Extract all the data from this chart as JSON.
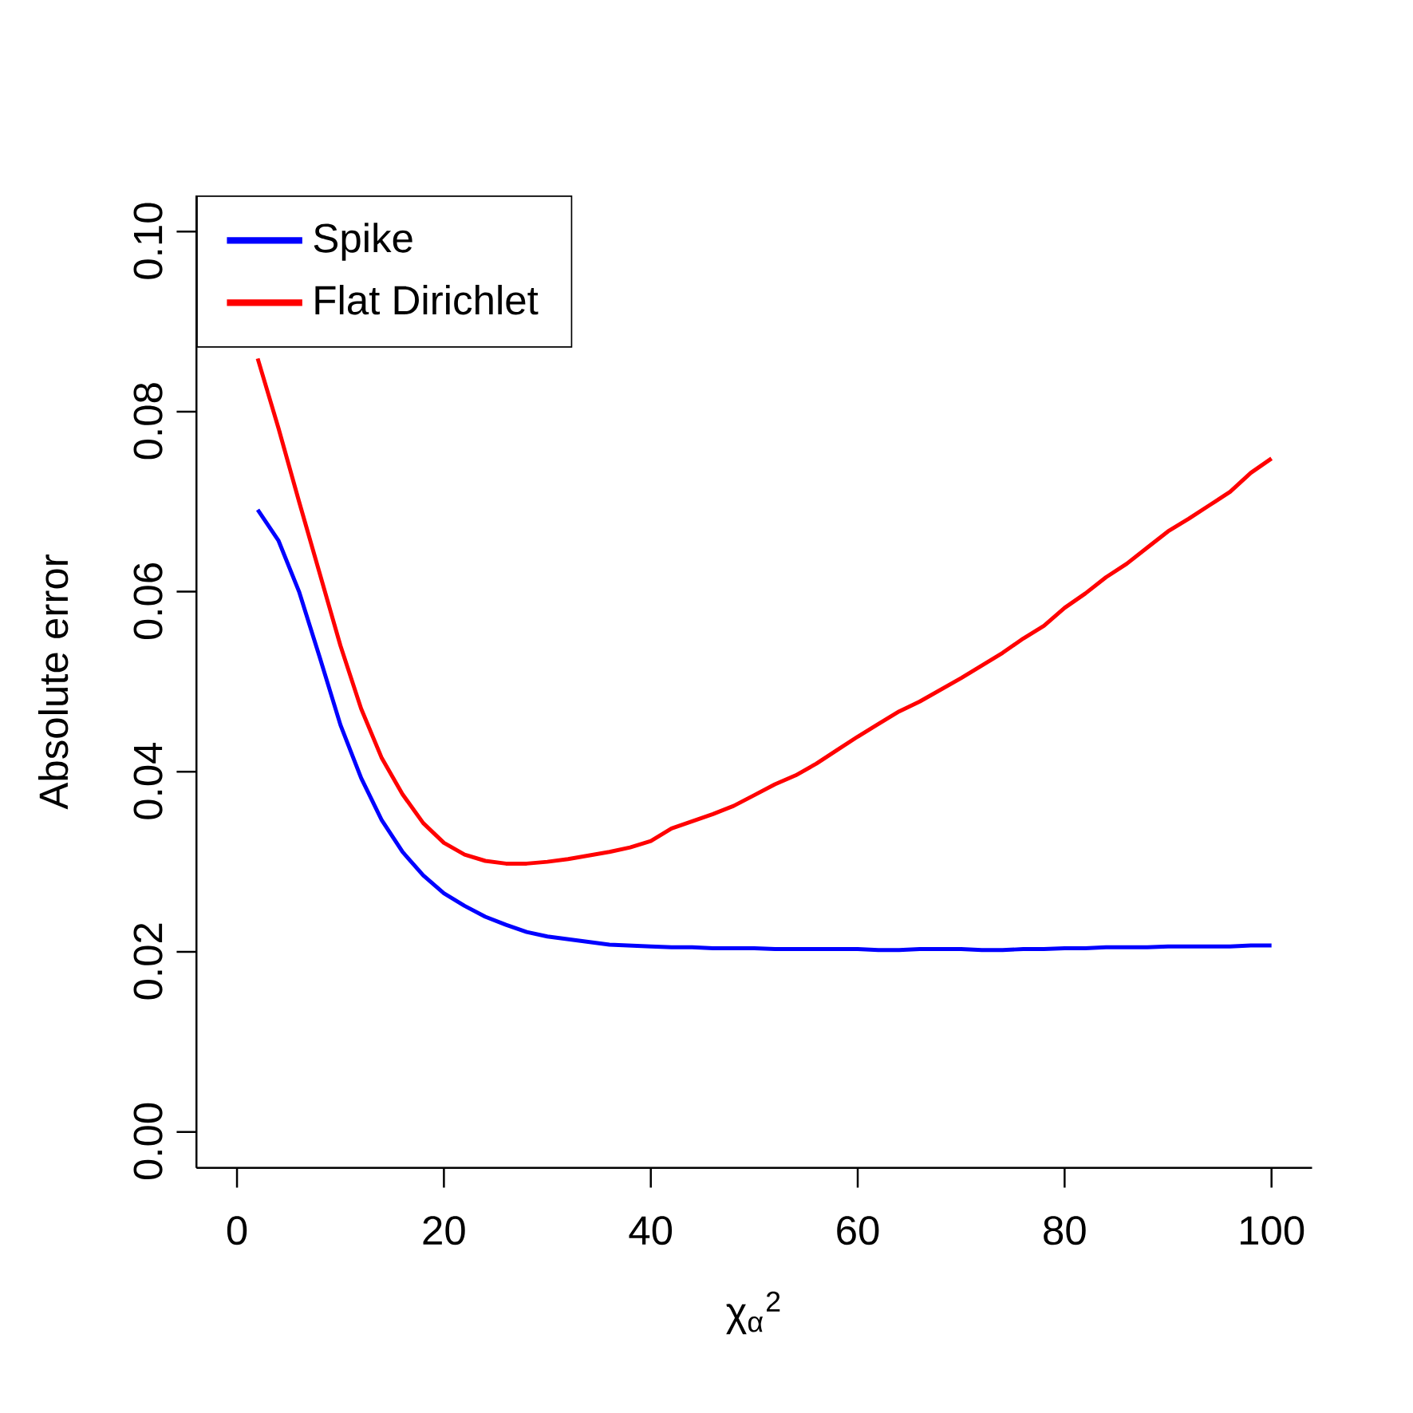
{
  "chart_data": {
    "type": "line",
    "xlabel": "χ$_{α}$$^{2}$",
    "ylabel": "Absolute error",
    "x": [
      2,
      4,
      6,
      8,
      10,
      12,
      14,
      16,
      18,
      20,
      22,
      24,
      26,
      28,
      30,
      32,
      34,
      36,
      38,
      40,
      42,
      44,
      46,
      48,
      50,
      52,
      54,
      56,
      58,
      60,
      62,
      64,
      66,
      68,
      70,
      72,
      74,
      76,
      78,
      80,
      82,
      84,
      86,
      88,
      90,
      92,
      94,
      96,
      98,
      100
    ],
    "series": [
      {
        "name": "Spike",
        "color": "#0000ff",
        "values": [
          0.0691,
          0.0657,
          0.06,
          0.0527,
          0.0452,
          0.0393,
          0.0346,
          0.0311,
          0.0285,
          0.0265,
          0.0251,
          0.0239,
          0.023,
          0.0222,
          0.0217,
          0.0214,
          0.0211,
          0.0208,
          0.0207,
          0.0206,
          0.0205,
          0.0205,
          0.0204,
          0.0204,
          0.0204,
          0.0203,
          0.0203,
          0.0203,
          0.0203,
          0.0203,
          0.0202,
          0.0202,
          0.0203,
          0.0203,
          0.0203,
          0.0202,
          0.0202,
          0.0203,
          0.0203,
          0.0204,
          0.0204,
          0.0205,
          0.0205,
          0.0205,
          0.0206,
          0.0206,
          0.0206,
          0.0206,
          0.0207,
          0.0207
        ]
      },
      {
        "name": "Flat Dirichlet",
        "color": "#ff0000",
        "values": [
          0.0859,
          0.0782,
          0.07,
          0.062,
          0.054,
          0.047,
          0.0415,
          0.0375,
          0.0343,
          0.0321,
          0.0308,
          0.0301,
          0.0298,
          0.0298,
          0.03,
          0.0303,
          0.0307,
          0.0311,
          0.0316,
          0.0323,
          0.0337,
          0.0345,
          0.0353,
          0.0362,
          0.0374,
          0.0386,
          0.0396,
          0.0409,
          0.0424,
          0.0439,
          0.0453,
          0.0467,
          0.0478,
          0.0491,
          0.0504,
          0.0518,
          0.0532,
          0.0548,
          0.0562,
          0.0582,
          0.0598,
          0.0616,
          0.0631,
          0.0649,
          0.0667,
          0.0681,
          0.0696,
          0.0711,
          0.0732,
          0.0748
        ]
      }
    ],
    "xlim": [
      -3.92,
      103.92
    ],
    "ylim": [
      -0.004,
      0.104
    ],
    "xticks": [
      0,
      20,
      40,
      60,
      80,
      100
    ],
    "yticks": [
      {
        "value": 0,
        "label": "0.00"
      },
      {
        "value": 0.02,
        "label": "0.02"
      },
      {
        "value": 0.04,
        "label": "0.04"
      },
      {
        "value": 0.06,
        "label": "0.06"
      },
      {
        "value": 0.08,
        "label": "0.08"
      },
      {
        "value": 0.1,
        "label": "0.10"
      }
    ],
    "legend": "top left",
    "grid": false,
    "line_style": "solid",
    "marker": "none"
  }
}
